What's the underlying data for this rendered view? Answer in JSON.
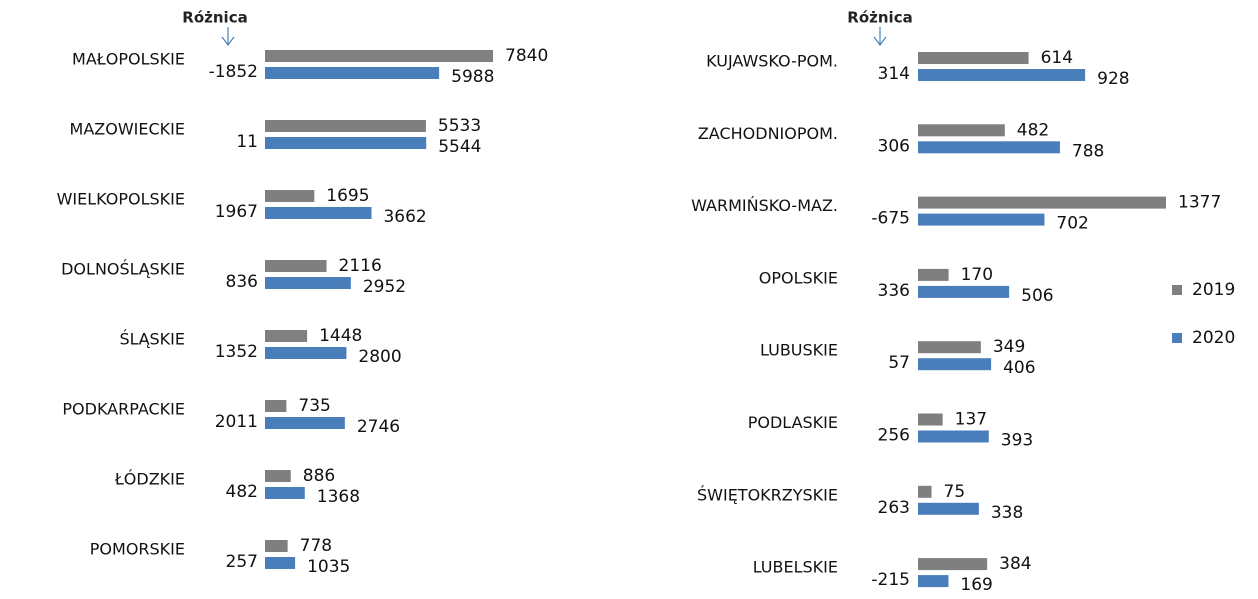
{
  "chart_data": [
    {
      "type": "hbar",
      "annotation": "Różnica",
      "categories": [
        "MAŁOPOLSKIE",
        "MAZOWIECKIE",
        "WIELKOPOLSKIE",
        "DOLNOŚLĄSKIE",
        "ŚLĄSKIE",
        "PODKARPACKIE",
        "ŁÓDZKIE",
        "POMORSKIE"
      ],
      "series": [
        {
          "name": "2019",
          "color": "#7f7f7f",
          "values": [
            7840,
            5533,
            1695,
            2116,
            1448,
            735,
            886,
            778
          ]
        },
        {
          "name": "2020",
          "color": "#4a7ebb",
          "values": [
            5988,
            5544,
            3662,
            2952,
            2800,
            2746,
            1368,
            1035
          ]
        }
      ],
      "differences": [
        -1852,
        11,
        1967,
        836,
        1352,
        2011,
        482,
        257
      ],
      "difference_colors": {
        "positive": "#ff2020",
        "negative": "#00b050"
      },
      "legend": false
    },
    {
      "type": "hbar",
      "annotation": "Różnica",
      "categories": [
        "KUJAWSKO-POM.",
        "ZACHODNIOPOM.",
        "WARMIŃSKO-MAZ.",
        "OPOLSKIE",
        "LUBUSKIE",
        "PODLASKIE",
        "ŚWIĘTOKRZYSKIE",
        "LUBELSKIE"
      ],
      "series": [
        {
          "name": "2019",
          "color": "#7f7f7f",
          "values": [
            614,
            482,
            1377,
            170,
            349,
            137,
            75,
            384
          ]
        },
        {
          "name": "2020",
          "color": "#4a7ebb",
          "values": [
            928,
            788,
            702,
            506,
            406,
            393,
            338,
            169
          ]
        }
      ],
      "differences": [
        314,
        306,
        -675,
        336,
        57,
        256,
        263,
        -215
      ],
      "difference_colors": {
        "positive": "#ff2020",
        "negative": "#00b050"
      },
      "legend": true
    }
  ]
}
